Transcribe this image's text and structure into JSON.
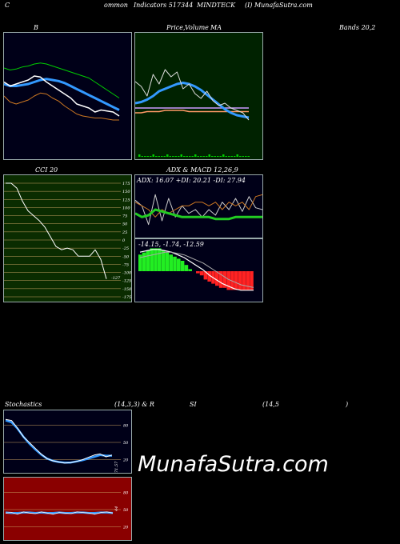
{
  "header": {
    "c": "C",
    "ommon": "ommon",
    "indicators": "Indicators 517344",
    "symbol": "MINDTECK",
    "site": "(I) MunafaSutra.com"
  },
  "titles": {
    "b": "B",
    "price": "Price,",
    "volume": "Volume",
    "ma": "MA",
    "bands": "Bands 20,2",
    "cci": "CCI 20",
    "adx_macd": "ADX  & MACD 12,26,9",
    "stoch": "Stochastics",
    "stoch_params": "(14,3,3) & R",
    "si": "SI",
    "rsi_params": "(14,5",
    "rsi_close": ")"
  },
  "watermark": "MunafaSutra.com",
  "colors": {
    "bands_bg": "#000018",
    "price_bg": "#002200",
    "cci_bg": "#0a2c00",
    "adx_bg": "#000018",
    "stoch_bg": "#000018",
    "rsi_bg": "#8a0000",
    "blue": "#3399ff",
    "green": "#00cc00",
    "orange": "#cc7722",
    "white": "#ffffff"
  },
  "chart_data": [
    {
      "name": "bollinger",
      "type": "line",
      "series": [
        {
          "values": [
            88,
            86,
            87,
            89,
            90,
            92,
            93,
            92,
            90,
            88,
            86,
            84,
            82,
            80,
            78,
            74,
            70,
            66,
            62,
            58
          ]
        },
        {
          "values": [
            72,
            70,
            70,
            71,
            72,
            74,
            76,
            77,
            76,
            75,
            73,
            70,
            67,
            64,
            61,
            58,
            55,
            52,
            49,
            46
          ]
        },
        {
          "values": [
            60,
            54,
            52,
            54,
            56,
            60,
            63,
            62,
            58,
            55,
            50,
            46,
            42,
            40,
            39,
            38,
            38,
            37,
            36,
            36
          ]
        },
        {
          "values": [
            74,
            70,
            72,
            74,
            76,
            80,
            79,
            74,
            70,
            66,
            62,
            58,
            52,
            50,
            48,
            44,
            46,
            45,
            44,
            40
          ]
        }
      ]
    },
    {
      "name": "price_volume_ma",
      "type": "line",
      "series": [
        {
          "values": [
            62,
            58,
            50,
            68,
            60,
            72,
            66,
            70,
            56,
            60,
            52,
            48,
            54,
            46,
            42,
            44,
            40,
            38,
            36,
            30
          ]
        },
        {
          "values": [
            44,
            45,
            47,
            50,
            54,
            56,
            58,
            60,
            61,
            60,
            58,
            55,
            51,
            47,
            43,
            39,
            36,
            34,
            33,
            32
          ]
        },
        {
          "values": [
            40,
            40,
            40,
            40,
            40,
            40,
            40,
            40,
            40,
            40,
            40,
            40,
            40,
            40,
            40,
            40,
            40,
            40,
            40,
            40
          ]
        },
        {
          "values": [
            36,
            36,
            37,
            37,
            37,
            38,
            38,
            38,
            38,
            37,
            37,
            37,
            37,
            37,
            37,
            37,
            37,
            37,
            37,
            37
          ]
        }
      ]
    },
    {
      "name": "cci",
      "type": "line",
      "ylabels": [
        "175",
        "150",
        "125",
        "100",
        "75",
        "50",
        "25",
        "0",
        "-25",
        "-50",
        "-75",
        "-100",
        "-125",
        "-150",
        "-175"
      ],
      "last_value_label": "-127",
      "series": [
        {
          "values": [
            175,
            175,
            160,
            120,
            90,
            75,
            60,
            40,
            10,
            -20,
            -30,
            -25,
            -30,
            -50,
            -50,
            -50,
            -30,
            -60,
            -120
          ]
        }
      ]
    },
    {
      "name": "adx",
      "type": "line",
      "label": "ADX: 16.07  +DI: 20.21  -DI: 27.94",
      "series": [
        {
          "values": [
            18,
            16,
            17,
            20,
            19,
            18,
            17,
            16,
            16,
            16,
            16,
            16,
            15,
            15,
            15,
            16,
            16,
            16,
            16,
            16
          ]
        },
        {
          "values": [
            25,
            22,
            12,
            28,
            14,
            26,
            16,
            22,
            18,
            20,
            16,
            20,
            17,
            24,
            20,
            26,
            19,
            27,
            21,
            20
          ]
        },
        {
          "values": [
            24,
            22,
            20,
            16,
            20,
            18,
            20,
            22,
            22,
            24,
            24,
            22,
            24,
            20,
            24,
            22,
            24,
            20,
            27,
            28
          ]
        }
      ]
    },
    {
      "name": "macd",
      "type": "bar",
      "label": "-14.15, -1.74, -12.59",
      "values": [
        8,
        9,
        10,
        11,
        11,
        11,
        10,
        9,
        8,
        7,
        6,
        5,
        3,
        1,
        0,
        -1,
        -2,
        -4,
        -5,
        -6,
        -7,
        -8,
        -8,
        -9,
        -9,
        -9,
        -9,
        -9,
        -9,
        -9
      ],
      "series": [
        {
          "values": [
            14,
            15,
            16,
            16,
            15,
            14,
            12,
            10,
            7,
            4,
            1,
            -3,
            -6,
            -9,
            -11,
            -13,
            -14,
            -14,
            -14
          ]
        },
        {
          "values": [
            10,
            11,
            12,
            13,
            14,
            14,
            13,
            12,
            10,
            8,
            6,
            3,
            0,
            -3,
            -6,
            -8,
            -10,
            -11,
            -12
          ]
        }
      ]
    },
    {
      "name": "stochastics",
      "type": "line",
      "ylabels": [
        "80",
        "50",
        "20"
      ],
      "last_value_label": "71.57",
      "series": [
        {
          "values": [
            90,
            88,
            75,
            60,
            50,
            40,
            30,
            22,
            18,
            16,
            14,
            15,
            17,
            20,
            24,
            28,
            30,
            25,
            28
          ]
        },
        {
          "values": [
            88,
            85,
            74,
            60,
            48,
            38,
            29,
            22,
            18,
            16,
            15,
            15,
            17,
            19,
            22,
            25,
            28,
            27,
            27
          ]
        }
      ]
    },
    {
      "name": "rsi",
      "type": "line",
      "ylabels": [
        "80",
        "50",
        "20"
      ],
      "last_value_label": "44",
      "series": [
        {
          "values": [
            44,
            45,
            42,
            46,
            44,
            43,
            46,
            44,
            42,
            45,
            44,
            43,
            46,
            45,
            44,
            42,
            45,
            46,
            44
          ]
        },
        {
          "values": [
            45,
            44,
            44,
            45,
            45,
            44,
            45,
            44,
            44,
            45,
            44,
            44,
            45,
            45,
            44,
            44,
            45,
            45,
            44
          ]
        }
      ]
    }
  ]
}
